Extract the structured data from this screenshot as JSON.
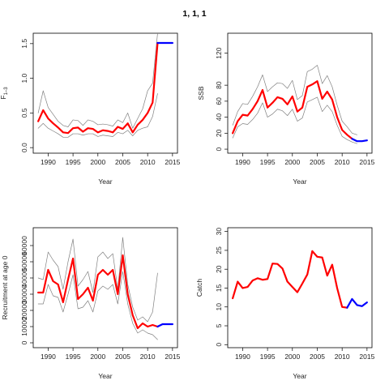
{
  "title": "1, 1, 1",
  "colors": {
    "estimate": "#ff0000",
    "forecast": "#0000ff",
    "interval": "#808080"
  },
  "chart_data": [
    {
      "id": "f",
      "type": "line",
      "xlabel": "Year",
      "ylabel": "F",
      "ylabel_sub": "1–3",
      "xlim": [
        1987,
        2016
      ],
      "ylim": [
        -0.08,
        1.65
      ],
      "xticks": [
        1990,
        1995,
        2000,
        2005,
        2010,
        2015
      ],
      "yticks": [
        0.0,
        0.5,
        1.0,
        1.5
      ],
      "ytick_labels": [
        "0.0",
        "0.5",
        "1.0",
        "1.5"
      ],
      "series": [
        {
          "role": "upper",
          "x": [
            1988,
            1989,
            1990,
            1991,
            1992,
            1993,
            1994,
            1995,
            1996,
            1997,
            1998,
            1999,
            2000,
            2001,
            2002,
            2003,
            2004,
            2005,
            2006,
            2007,
            2008,
            2009,
            2010,
            2011,
            2012
          ],
          "y": [
            0.5,
            0.82,
            0.58,
            0.48,
            0.38,
            0.32,
            0.3,
            0.4,
            0.39,
            0.32,
            0.4,
            0.38,
            0.33,
            0.34,
            0.33,
            0.31,
            0.4,
            0.36,
            0.5,
            0.28,
            0.42,
            0.56,
            0.82,
            0.93,
            1.65
          ]
        },
        {
          "role": "estimate",
          "x": [
            1988,
            1989,
            1990,
            1991,
            1992,
            1993,
            1994,
            1995,
            1996,
            1997,
            1998,
            1999,
            2000,
            2001,
            2002,
            2003,
            2004,
            2005,
            2006,
            2007,
            2008,
            2009,
            2010,
            2011,
            2012
          ],
          "y": [
            0.38,
            0.54,
            0.42,
            0.35,
            0.29,
            0.22,
            0.21,
            0.28,
            0.29,
            0.23,
            0.28,
            0.27,
            0.22,
            0.25,
            0.24,
            0.22,
            0.3,
            0.27,
            0.35,
            0.22,
            0.33,
            0.4,
            0.5,
            0.65,
            1.51
          ]
        },
        {
          "role": "lower",
          "x": [
            1988,
            1989,
            1990,
            1991,
            1992,
            1993,
            1994,
            1995,
            1996,
            1997,
            1998,
            1999,
            2000,
            2001,
            2002,
            2003,
            2004,
            2005,
            2006,
            2007,
            2008,
            2009,
            2010,
            2011,
            2012
          ],
          "y": [
            0.28,
            0.35,
            0.28,
            0.24,
            0.2,
            0.15,
            0.15,
            0.2,
            0.2,
            0.18,
            0.2,
            0.2,
            0.16,
            0.18,
            0.17,
            0.16,
            0.22,
            0.2,
            0.25,
            0.17,
            0.25,
            0.28,
            0.3,
            0.45,
            0.78
          ]
        },
        {
          "role": "forecast",
          "x": [
            2012,
            2013,
            2014,
            2015
          ],
          "y": [
            1.51,
            1.51,
            1.51,
            1.51
          ]
        }
      ]
    },
    {
      "id": "ssb",
      "type": "line",
      "xlabel": "Year",
      "ylabel": "SSB",
      "xlim": [
        1987,
        2016
      ],
      "ylim": [
        -5,
        145
      ],
      "xticks": [
        1990,
        1995,
        2000,
        2005,
        2010,
        2015
      ],
      "yticks": [
        0,
        20,
        40,
        60,
        80,
        120
      ],
      "ytick_labels": [
        "0",
        "20",
        "40",
        "60",
        "80",
        "120"
      ],
      "series": [
        {
          "role": "upper",
          "x": [
            1988,
            1989,
            1990,
            1991,
            1992,
            1993,
            1994,
            1995,
            1996,
            1997,
            1998,
            1999,
            2000,
            2001,
            2002,
            2003,
            2004,
            2005,
            2006,
            2007,
            2008,
            2009,
            2010,
            2011,
            2012,
            2013
          ],
          "y": [
            30,
            47,
            57,
            56,
            66,
            78,
            93,
            72,
            78,
            83,
            82,
            76,
            86,
            62,
            67,
            97,
            100,
            105,
            82,
            92,
            78,
            55,
            35,
            28,
            20,
            18
          ]
        },
        {
          "role": "estimate",
          "x": [
            1988,
            1989,
            1990,
            1991,
            1992,
            1993,
            1994,
            1995,
            1996,
            1997,
            1998,
            1999,
            2000,
            2001,
            2002,
            2003,
            2004,
            2005,
            2006,
            2007,
            2008,
            2009,
            2010,
            2011,
            2012
          ],
          "y": [
            20,
            35,
            43,
            42,
            50,
            60,
            74,
            52,
            58,
            65,
            63,
            56,
            66,
            47,
            52,
            78,
            81,
            85,
            63,
            72,
            62,
            40,
            24,
            18,
            13
          ]
        },
        {
          "role": "lower",
          "x": [
            1988,
            1989,
            1990,
            1991,
            1992,
            1993,
            1994,
            1995,
            1996,
            1997,
            1998,
            1999,
            2000,
            2001,
            2002,
            2003,
            2004,
            2005,
            2006,
            2007,
            2008,
            2009,
            2010,
            2011,
            2012,
            2013
          ],
          "y": [
            14,
            28,
            32,
            31,
            37,
            45,
            58,
            40,
            44,
            50,
            48,
            42,
            50,
            35,
            39,
            59,
            62,
            65,
            47,
            55,
            47,
            30,
            16,
            12,
            9,
            7
          ]
        },
        {
          "role": "forecast",
          "x": [
            2012,
            2013,
            2014,
            2015
          ],
          "y": [
            13,
            10,
            10,
            11
          ]
        }
      ]
    },
    {
      "id": "recruitment",
      "type": "line",
      "xlabel": "Year",
      "ylabel": "Recruitment at age 0",
      "xlim": [
        1987,
        2016
      ],
      "ylim": [
        -3000,
        71000
      ],
      "xticks": [
        1990,
        1995,
        2000,
        2005,
        2010,
        2015
      ],
      "yticks": [
        0,
        10000,
        20000,
        30000,
        40000,
        50000,
        60000
      ],
      "ytick_labels": [
        "0",
        "10000",
        "20000",
        "30000",
        "40000",
        "50000",
        "60000"
      ],
      "series": [
        {
          "role": "upper",
          "x": [
            1988,
            1989,
            1990,
            1991,
            1992,
            1993,
            1994,
            1995,
            1996,
            1997,
            1998,
            1999,
            2000,
            2001,
            2002,
            2003,
            2004,
            2005,
            2006,
            2007,
            2008,
            2009,
            2010,
            2011,
            2012
          ],
          "y": [
            40000,
            39000,
            56000,
            51000,
            47000,
            33000,
            50000,
            64000,
            35000,
            39000,
            44000,
            31000,
            53000,
            56000,
            52000,
            55000,
            33000,
            65000,
            36000,
            22000,
            14000,
            16000,
            13000,
            19000,
            43000
          ]
        },
        {
          "role": "estimate",
          "x": [
            1988,
            1989,
            1990,
            1991,
            1992,
            1993,
            1994,
            1995,
            1996,
            1997,
            1998,
            1999,
            2000,
            2001,
            2002,
            2003,
            2004,
            2005,
            2006,
            2007,
            2008,
            2009,
            2010,
            2011,
            2012
          ],
          "y": [
            31000,
            31000,
            45000,
            38000,
            36000,
            25000,
            39000,
            52000,
            27000,
            30000,
            34000,
            26000,
            42000,
            45000,
            42000,
            45000,
            30000,
            54000,
            30000,
            17000,
            9000,
            12000,
            10000,
            11000,
            10000
          ]
        },
        {
          "role": "lower",
          "x": [
            1988,
            1989,
            1990,
            1991,
            1992,
            1993,
            1994,
            1995,
            1996,
            1997,
            1998,
            1999,
            2000,
            2001,
            2002,
            2003,
            2004,
            2005,
            2006,
            2007,
            2008,
            2009,
            2010,
            2011,
            2012
          ],
          "y": [
            24000,
            24000,
            36000,
            29000,
            28000,
            19000,
            30000,
            42000,
            21000,
            22000,
            26000,
            19000,
            32000,
            35000,
            33000,
            36000,
            24000,
            44000,
            24000,
            12000,
            6000,
            8000,
            6000,
            5000,
            2000
          ]
        },
        {
          "role": "forecast",
          "x": [
            2012,
            2013,
            2014,
            2015
          ],
          "y": [
            10000,
            11500,
            11500,
            11500
          ]
        }
      ]
    },
    {
      "id": "catch",
      "type": "line",
      "xlabel": "Year",
      "ylabel": "Catch",
      "xlim": [
        1987,
        2016
      ],
      "ylim": [
        -0.8,
        31
      ],
      "xticks": [
        1990,
        1995,
        2000,
        2005,
        2010,
        2015
      ],
      "yticks": [
        0,
        5,
        10,
        15,
        20,
        25,
        30
      ],
      "ytick_labels": [
        "0",
        "5",
        "10",
        "15",
        "20",
        "25",
        "30"
      ],
      "series": [
        {
          "role": "estimate",
          "x": [
            1988,
            1989,
            1990,
            1991,
            1992,
            1993,
            1994,
            1995,
            1996,
            1997,
            1998,
            1999,
            2000,
            2001,
            2002,
            2003,
            2004,
            2005,
            2006,
            2007,
            2008,
            2009,
            2010,
            2011
          ],
          "y": [
            12.3,
            16.7,
            15.0,
            15.3,
            17.0,
            17.6,
            17.2,
            17.4,
            21.5,
            21.4,
            20.2,
            16.7,
            15.3,
            13.9,
            16.2,
            18.6,
            24.8,
            23.3,
            23.1,
            18.3,
            21.2,
            15.0,
            10.0,
            9.8
          ]
        },
        {
          "role": "forecast",
          "x": [
            2011,
            2012,
            2013,
            2014,
            2015
          ],
          "y": [
            9.8,
            12.1,
            10.5,
            10.2,
            11.2
          ]
        }
      ]
    }
  ]
}
